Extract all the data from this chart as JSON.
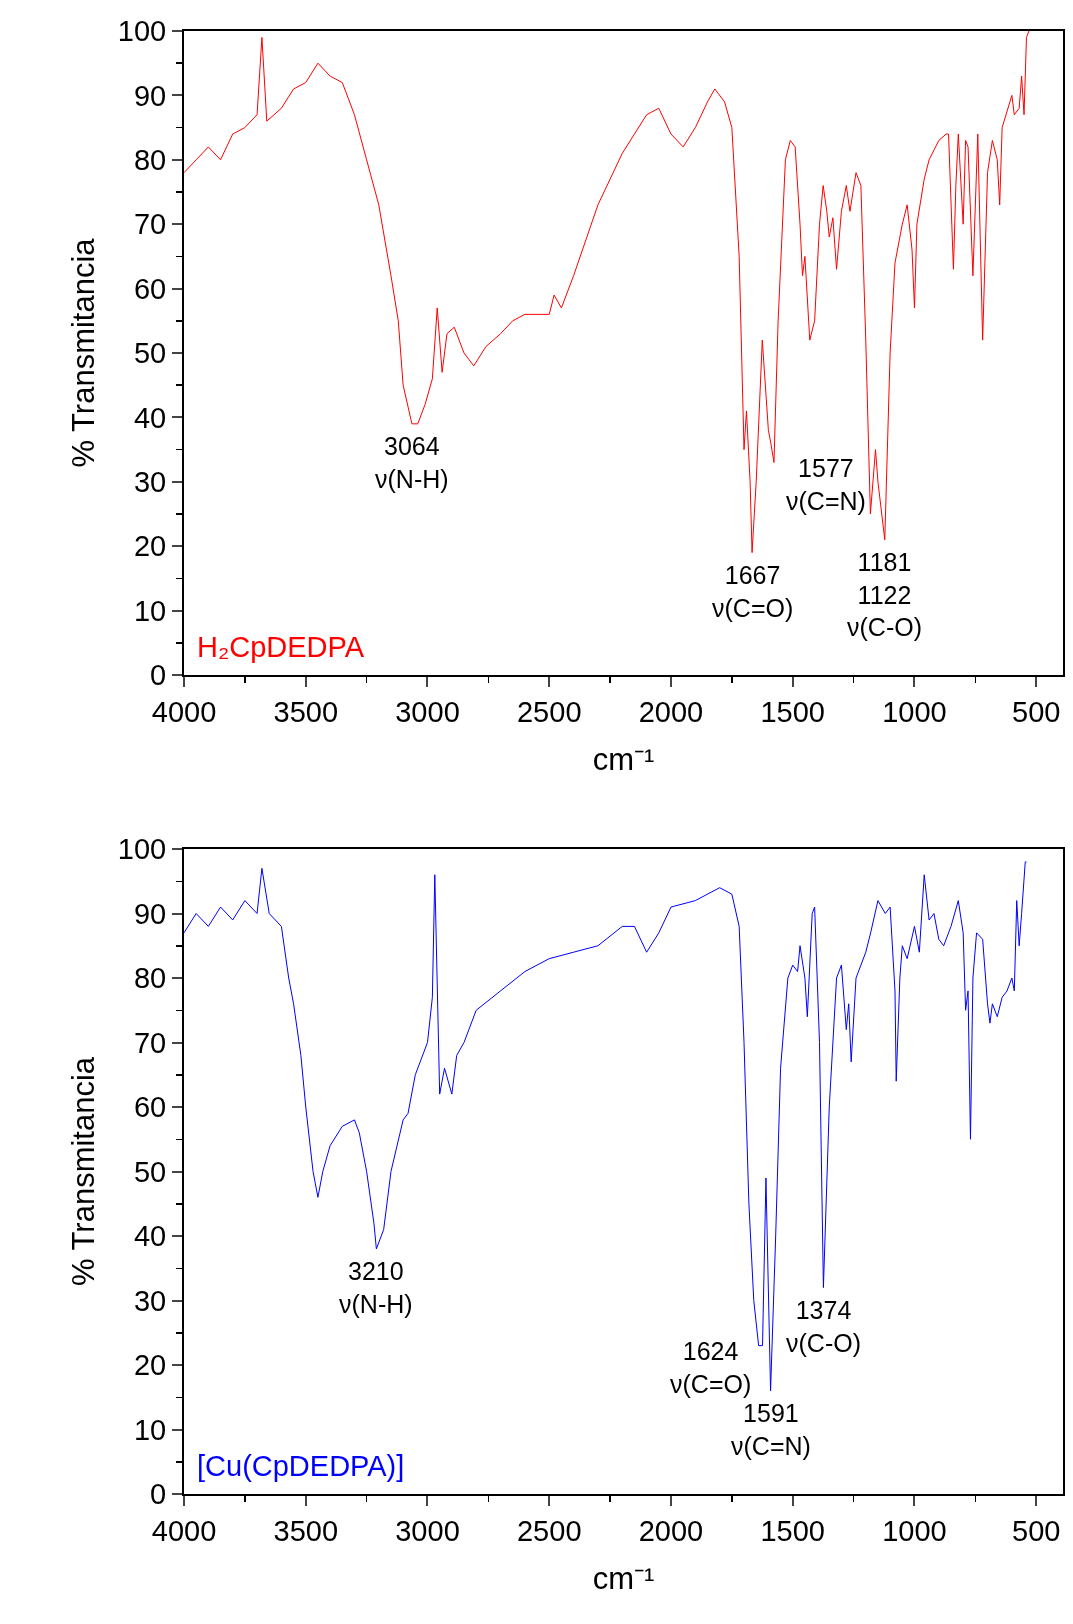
{
  "chart_data": [
    {
      "type": "line",
      "xlabel": "cm⁻¹",
      "ylabel": "% Transmitancia",
      "xlim": [
        4000,
        390
      ],
      "ylim": [
        0,
        100
      ],
      "xticks": [
        4000,
        3500,
        3000,
        2500,
        2000,
        1500,
        1000,
        500
      ],
      "yticks": [
        0,
        10,
        20,
        30,
        40,
        50,
        60,
        70,
        80,
        90,
        100
      ],
      "grid": false,
      "legend": false,
      "marker": "none",
      "line_style": "solid",
      "series": [
        {
          "name": "H₂CpDEDPA",
          "color": "#ff0000",
          "x": [
            4000,
            3950,
            3900,
            3850,
            3800,
            3750,
            3700,
            3680,
            3660,
            3600,
            3550,
            3500,
            3450,
            3400,
            3350,
            3300,
            3250,
            3200,
            3150,
            3120,
            3100,
            3064,
            3040,
            3010,
            2980,
            2960,
            2940,
            2920,
            2890,
            2850,
            2810,
            2760,
            2700,
            2650,
            2600,
            2500,
            2480,
            2450,
            2400,
            2300,
            2200,
            2100,
            2050,
            2000,
            1950,
            1900,
            1850,
            1820,
            1780,
            1750,
            1720,
            1700,
            1690,
            1675,
            1667,
            1650,
            1625,
            1600,
            1590,
            1577,
            1560,
            1530,
            1510,
            1490,
            1470,
            1460,
            1450,
            1430,
            1410,
            1390,
            1375,
            1360,
            1350,
            1335,
            1320,
            1300,
            1280,
            1265,
            1240,
            1220,
            1200,
            1181,
            1160,
            1150,
            1122,
            1100,
            1080,
            1050,
            1030,
            1010,
            1000,
            990,
            960,
            940,
            900,
            870,
            860,
            840,
            830,
            820,
            800,
            790,
            780,
            760,
            740,
            720,
            700,
            680,
            660,
            650,
            640,
            600,
            590,
            570,
            560,
            550,
            540,
            530
          ],
          "values": [
            78,
            80,
            82,
            80,
            84,
            85,
            87,
            99,
            86,
            88,
            91,
            92,
            95,
            93,
            92,
            87,
            80,
            73,
            62,
            55,
            45,
            39,
            39,
            42,
            46,
            57,
            47,
            53,
            54,
            50,
            48,
            51,
            53,
            55,
            56,
            56,
            59,
            57,
            62,
            73,
            81,
            87,
            88,
            84,
            82,
            85,
            89,
            91,
            89,
            85,
            65,
            35,
            41,
            30,
            19,
            30,
            52,
            38,
            36,
            33,
            55,
            80,
            83,
            82,
            70,
            62,
            65,
            52,
            55,
            70,
            76,
            72,
            68,
            71,
            63,
            72,
            76,
            72,
            78,
            76,
            52,
            25,
            35,
            30,
            21,
            50,
            64,
            70,
            73,
            66,
            57,
            70,
            77,
            80,
            83,
            84,
            84,
            63,
            76,
            84,
            70,
            83,
            82,
            62,
            84,
            52,
            78,
            83,
            80,
            73,
            85,
            90,
            87,
            88,
            93,
            87,
            99,
            100
          ]
        }
      ],
      "annotations": [
        {
          "text": "3064\nν(N-H)",
          "x": 3064,
          "y": 39
        },
        {
          "text": "1577\nν(C=N)",
          "x": 1577,
          "y": 33
        },
        {
          "text": "1667\nν(C=O)",
          "x": 1667,
          "y": 19
        },
        {
          "text": "1181\n1122\nν(C-O)",
          "x": 1122,
          "y": 21
        }
      ]
    },
    {
      "type": "line",
      "xlabel": "cm⁻¹",
      "ylabel": "% Transmitancia",
      "xlim": [
        4000,
        390
      ],
      "ylim": [
        0,
        100
      ],
      "xticks": [
        4000,
        3500,
        3000,
        2500,
        2000,
        1500,
        1000,
        500
      ],
      "yticks": [
        0,
        10,
        20,
        30,
        40,
        50,
        60,
        70,
        80,
        90,
        100
      ],
      "grid": false,
      "legend": false,
      "marker": "none",
      "line_style": "solid",
      "series": [
        {
          "name": "[Cu(CpDEDPA)]",
          "color": "#0000ff",
          "x": [
            4000,
            3950,
            3900,
            3850,
            3800,
            3750,
            3700,
            3680,
            3650,
            3600,
            3570,
            3550,
            3520,
            3500,
            3470,
            3450,
            3430,
            3400,
            3350,
            3300,
            3280,
            3250,
            3220,
            3210,
            3180,
            3150,
            3100,
            3080,
            3050,
            3000,
            2980,
            2970,
            2950,
            2930,
            2900,
            2880,
            2850,
            2800,
            2700,
            2600,
            2500,
            2400,
            2300,
            2200,
            2150,
            2100,
            2050,
            2000,
            1900,
            1800,
            1750,
            1720,
            1700,
            1680,
            1660,
            1640,
            1624,
            1610,
            1591,
            1570,
            1550,
            1520,
            1500,
            1480,
            1470,
            1450,
            1440,
            1420,
            1410,
            1390,
            1374,
            1350,
            1320,
            1300,
            1280,
            1270,
            1260,
            1240,
            1220,
            1200,
            1180,
            1150,
            1120,
            1100,
            1080,
            1075,
            1060,
            1050,
            1030,
            1000,
            980,
            960,
            940,
            920,
            900,
            880,
            850,
            820,
            800,
            790,
            780,
            770,
            760,
            745,
            720,
            700,
            690,
            680,
            660,
            640,
            620,
            600,
            590,
            580,
            570,
            560,
            545,
            540
          ],
          "values": [
            87,
            90,
            88,
            91,
            89,
            92,
            90,
            97,
            90,
            88,
            80,
            76,
            68,
            60,
            50,
            46,
            50,
            54,
            57,
            58,
            56,
            50,
            42,
            38,
            41,
            50,
            58,
            59,
            65,
            70,
            77,
            96,
            62,
            66,
            62,
            68,
            70,
            75,
            78,
            81,
            83,
            84,
            85,
            88,
            88,
            84,
            87,
            91,
            92,
            94,
            93,
            88,
            70,
            45,
            30,
            23,
            23,
            49,
            16,
            40,
            66,
            80,
            82,
            81,
            85,
            80,
            74,
            90,
            91,
            70,
            32,
            60,
            80,
            82,
            72,
            76,
            67,
            80,
            82,
            84,
            87,
            92,
            90,
            91,
            78,
            64,
            80,
            85,
            83,
            88,
            84,
            96,
            89,
            90,
            86,
            85,
            88,
            92,
            87,
            75,
            78,
            55,
            80,
            87,
            86,
            76,
            73,
            76,
            74,
            77,
            78,
            80,
            78,
            92,
            85,
            90,
            98,
            98
          ]
        }
      ],
      "annotations": [
        {
          "text": "3210\nν(N-H)",
          "x": 3210,
          "y": 38
        },
        {
          "text": "1624\nν(C=O)",
          "x": 1624,
          "y": 23
        },
        {
          "text": "1591\nν(C=N)",
          "x": 1591,
          "y": 16
        },
        {
          "text": "1374\nν(C-O)",
          "x": 1374,
          "y": 32
        }
      ]
    }
  ]
}
